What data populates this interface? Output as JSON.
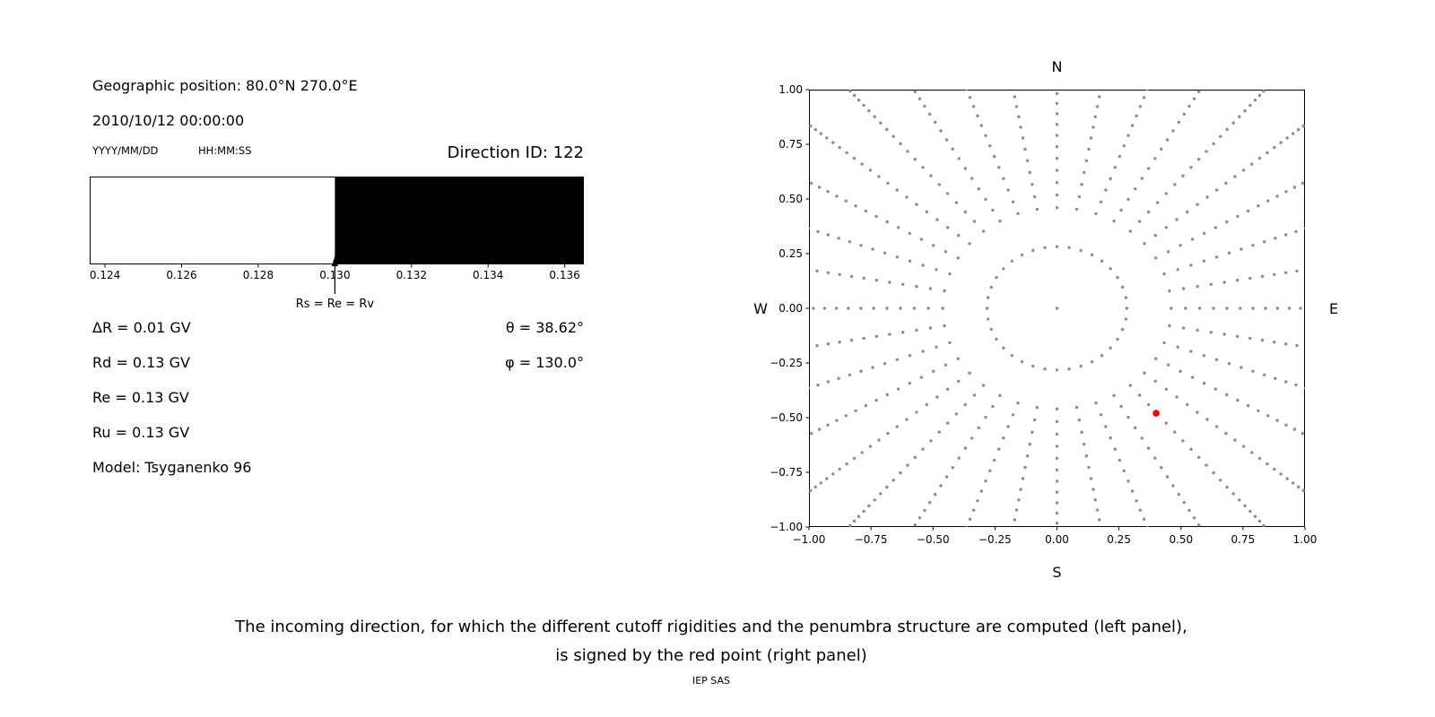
{
  "header": {
    "geo_position": "Geographic position: 80.0°N 270.0°E",
    "datetime": "2010/10/12 00:00:00",
    "date_format_label": "YYYY/MM/DD",
    "time_format_label": "HH:MM:SS",
    "direction_id": "Direction ID: 122"
  },
  "cutoffs": {
    "delta_r": "ΔR = 0.01 GV",
    "rd": "Rd = 0.13 GV",
    "re": "Re = 0.13 GV",
    "ru": "Ru = 0.13 GV",
    "model": "Model: Tsyganenko 96",
    "theta": "θ = 38.62°",
    "phi": "φ = 130.0°"
  },
  "caption": {
    "line1": "The incoming direction, for which the different cutoff rigidities and the penumbra structure are computed (left panel),",
    "line2": "is signed by the red point (right panel)",
    "credit": "IEP SAS"
  },
  "chart_data": [
    {
      "name": "penumbra-plot",
      "type": "area",
      "xlim": [
        0.1236,
        0.1365
      ],
      "xticks": [
        0.124,
        0.126,
        0.128,
        0.13,
        0.132,
        0.134,
        0.136
      ],
      "xtick_labels": [
        "0.124",
        "0.126",
        "0.128",
        "0.130",
        "0.132",
        "0.134",
        "0.136"
      ],
      "allowed_region": {
        "from": 0.1236,
        "to": 0.13,
        "color": "#ffffff"
      },
      "forbidden_region": {
        "from": 0.13,
        "to": 0.1365,
        "color": "#000000"
      },
      "cutoff_marker": {
        "x": 0.13,
        "label": "Rs = Re = Rv"
      }
    },
    {
      "name": "incoming-direction-grid",
      "type": "scatter",
      "xlim": [
        -1,
        1
      ],
      "ylim": [
        -1,
        1
      ],
      "xticks": [
        -1,
        -0.75,
        -0.5,
        -0.25,
        0,
        0.25,
        0.5,
        0.75,
        1
      ],
      "xtick_labels": [
        "−1.00",
        "−0.75",
        "−0.50",
        "−0.25",
        "0.00",
        "0.25",
        "0.50",
        "0.75",
        "1.00"
      ],
      "yticks": [
        1,
        0.75,
        0.5,
        0.25,
        0,
        -0.25,
        -0.5,
        -0.75,
        -1
      ],
      "ytick_labels": [
        "1.00",
        "0.75",
        "0.50",
        "0.25",
        "0.00",
        "−0.25",
        "−0.50",
        "−0.75",
        "−1.00"
      ],
      "compass": {
        "top": "N",
        "right": "E",
        "bottom": "S",
        "left": "W"
      },
      "grid_dots": {
        "color": "#8c8c8c",
        "include_center": true,
        "azimuth_step_deg": 10,
        "radial_scale": 1.414,
        "zenith_angles_deg": [
          11.5,
          19,
          21.5,
          24,
          26.5,
          29,
          31.5,
          34,
          36.5,
          39,
          41.5,
          44,
          46.5,
          49,
          51.5,
          54,
          56.5,
          59,
          61.5,
          64,
          66.5,
          69,
          71.5,
          74,
          76.5,
          79,
          81.5,
          84,
          86.5,
          89
        ]
      },
      "selected_direction": {
        "x": 0.4,
        "y": -0.48,
        "color": "#ff0000"
      }
    }
  ]
}
